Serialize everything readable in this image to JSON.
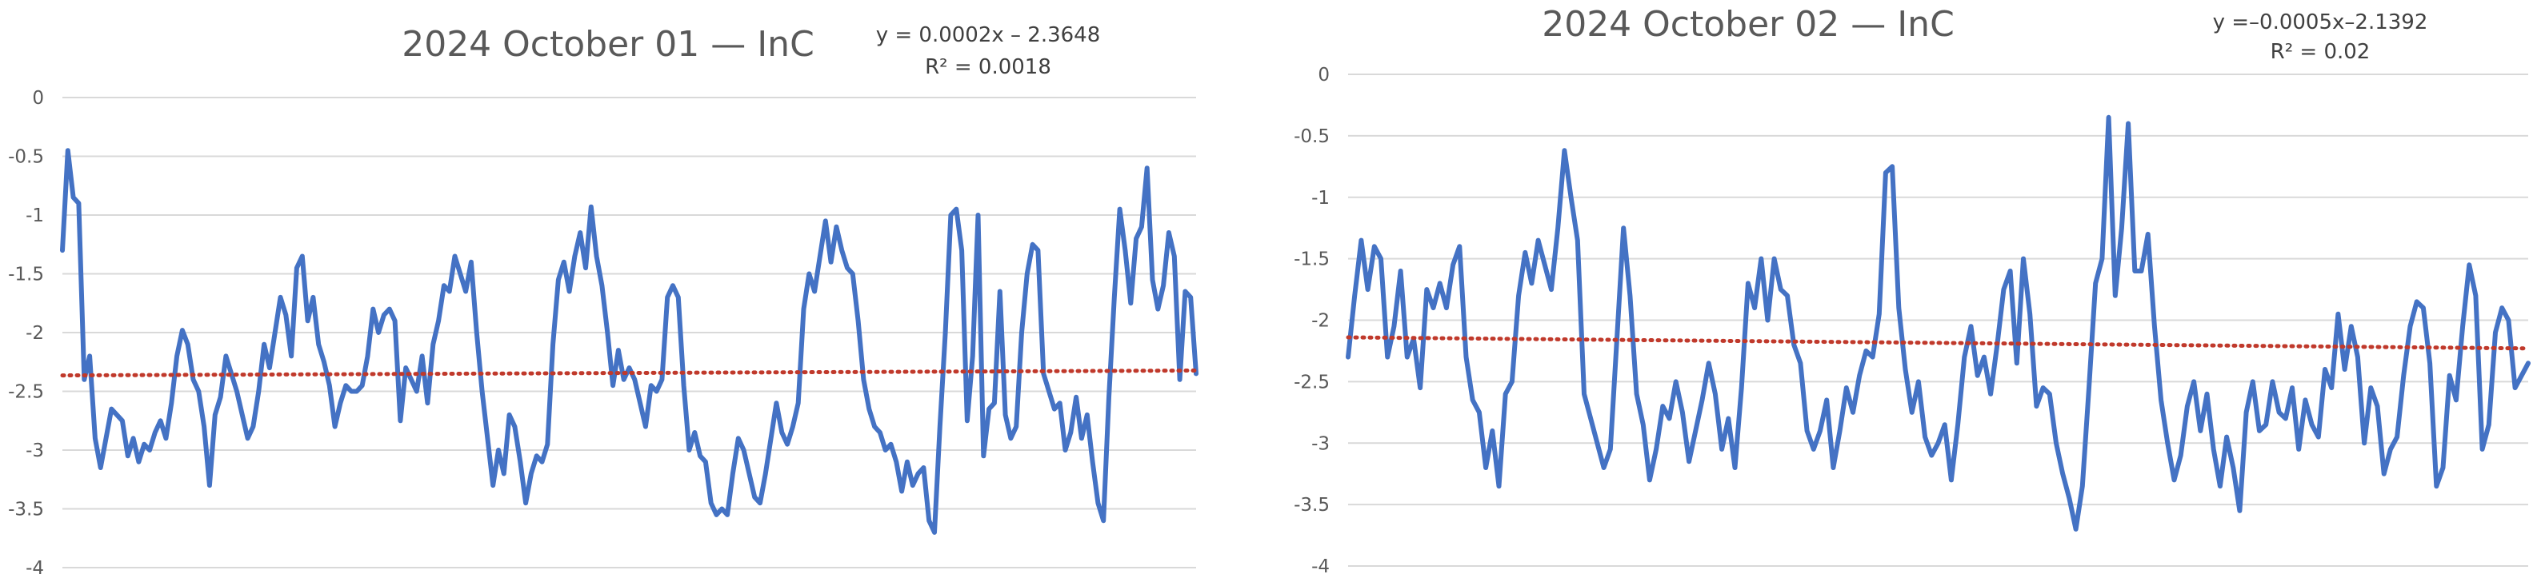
{
  "colors": {
    "series": "#4472C4",
    "trendline": "#C0392B"
  },
  "chart_data": [
    {
      "type": "line",
      "title": "2024 October 01 — InC",
      "xlabel": "",
      "ylabel": "",
      "ylim": [
        -4,
        0
      ],
      "y_ticks": [
        "0",
        "-0.5",
        "-1",
        "-1.5",
        "-2",
        "-2.5",
        "-3",
        "-3.5",
        "-4"
      ],
      "grid": true,
      "legend": "none",
      "trendline": {
        "equation": "y = 0.0002x – 2.3648",
        "r_squared": "R² = 0.0018",
        "slope": 0.0002,
        "intercept": -2.3648
      },
      "series": [
        {
          "values": [
            -1.3,
            -0.45,
            -0.85,
            -0.9,
            -2.4,
            -2.2,
            -2.9,
            -3.15,
            -2.9,
            -2.65,
            -2.7,
            -2.75,
            -3.05,
            -2.9,
            -3.1,
            -2.95,
            -3.0,
            -2.85,
            -2.75,
            -2.9,
            -2.6,
            -2.2,
            -1.98,
            -2.1,
            -2.4,
            -2.5,
            -2.8,
            -3.3,
            -2.7,
            -2.55,
            -2.2,
            -2.35,
            -2.5,
            -2.7,
            -2.9,
            -2.8,
            -2.5,
            -2.1,
            -2.3,
            -2.0,
            -1.7,
            -1.85,
            -2.2,
            -1.45,
            -1.35,
            -1.9,
            -1.7,
            -2.1,
            -2.25,
            -2.45,
            -2.8,
            -2.6,
            -2.45,
            -2.5,
            -2.5,
            -2.45,
            -2.2,
            -1.8,
            -2.0,
            -1.85,
            -1.8,
            -1.9,
            -2.75,
            -2.3,
            -2.4,
            -2.5,
            -2.2,
            -2.6,
            -2.1,
            -1.9,
            -1.6,
            -1.65,
            -1.35,
            -1.5,
            -1.65,
            -1.4,
            -2.0,
            -2.5,
            -2.9,
            -3.3,
            -3.0,
            -3.2,
            -2.7,
            -2.8,
            -3.1,
            -3.45,
            -3.2,
            -3.05,
            -3.1,
            -2.95,
            -2.1,
            -1.55,
            -1.4,
            -1.65,
            -1.35,
            -1.15,
            -1.45,
            -0.93,
            -1.35,
            -1.6,
            -2.0,
            -2.45,
            -2.15,
            -2.4,
            -2.3,
            -2.4,
            -2.6,
            -2.8,
            -2.45,
            -2.5,
            -2.4,
            -1.7,
            -1.6,
            -1.7,
            -2.45,
            -3.0,
            -2.85,
            -3.05,
            -3.1,
            -3.45,
            -3.55,
            -3.5,
            -3.55,
            -3.2,
            -2.9,
            -3.0,
            -3.2,
            -3.4,
            -3.45,
            -3.2,
            -2.9,
            -2.6,
            -2.85,
            -2.95,
            -2.8,
            -2.6,
            -1.8,
            -1.5,
            -1.65,
            -1.35,
            -1.05,
            -1.4,
            -1.1,
            -1.3,
            -1.45,
            -1.5,
            -1.9,
            -2.4,
            -2.65,
            -2.8,
            -2.85,
            -3.0,
            -2.95,
            -3.1,
            -3.35,
            -3.1,
            -3.3,
            -3.2,
            -3.15,
            -3.6,
            -3.7,
            -2.8,
            -2.0,
            -1.0,
            -0.95,
            -1.3,
            -2.75,
            -2.2,
            -1.0,
            -3.05,
            -2.65,
            -2.6,
            -1.65,
            -2.7,
            -2.9,
            -2.8,
            -2.0,
            -1.5,
            -1.25,
            -1.3,
            -2.35,
            -2.5,
            -2.65,
            -2.6,
            -3.0,
            -2.85,
            -2.55,
            -2.9,
            -2.7,
            -3.1,
            -3.45,
            -3.6,
            -2.55,
            -1.7,
            -0.95,
            -1.3,
            -1.75,
            -1.2,
            -1.1,
            -0.6,
            -1.55,
            -1.8,
            -1.6,
            -1.15,
            -1.35,
            -2.4,
            -1.65,
            -1.7,
            -2.35
          ]
        }
      ]
    },
    {
      "type": "line",
      "title": "2024 October 02 — InC",
      "xlabel": "",
      "ylabel": "",
      "ylim": [
        -4,
        0
      ],
      "y_ticks": [
        "0",
        "-0.5",
        "-1",
        "-1.5",
        "-2",
        "-2.5",
        "-3",
        "-3.5",
        "-4"
      ],
      "grid": true,
      "legend": "none",
      "trendline": {
        "equation": "y =–0.0005x–2.1392",
        "r_squared": "R² = 0.02",
        "slope": -0.0005,
        "intercept": -2.1392
      },
      "series": [
        {
          "values": [
            -2.3,
            -1.8,
            -1.35,
            -1.75,
            -1.4,
            -1.5,
            -2.3,
            -2.05,
            -1.6,
            -2.3,
            -2.15,
            -2.55,
            -1.75,
            -1.9,
            -1.7,
            -1.9,
            -1.55,
            -1.4,
            -2.3,
            -2.65,
            -2.75,
            -3.2,
            -2.9,
            -3.35,
            -2.6,
            -2.5,
            -1.8,
            -1.45,
            -1.7,
            -1.35,
            -1.55,
            -1.75,
            -1.25,
            -0.62,
            -1.0,
            -1.35,
            -2.6,
            -2.8,
            -3.0,
            -3.2,
            -3.05,
            -2.15,
            -1.25,
            -1.8,
            -2.6,
            -2.85,
            -3.3,
            -3.05,
            -2.7,
            -2.8,
            -2.5,
            -2.75,
            -3.15,
            -2.9,
            -2.65,
            -2.35,
            -2.6,
            -3.05,
            -2.8,
            -3.2,
            -2.55,
            -1.7,
            -1.9,
            -1.5,
            -2.0,
            -1.5,
            -1.75,
            -1.8,
            -2.2,
            -2.35,
            -2.9,
            -3.05,
            -2.9,
            -2.65,
            -3.2,
            -2.9,
            -2.55,
            -2.75,
            -2.45,
            -2.25,
            -2.3,
            -1.95,
            -0.8,
            -0.75,
            -1.9,
            -2.4,
            -2.75,
            -2.5,
            -2.95,
            -3.1,
            -3.0,
            -2.85,
            -3.3,
            -2.85,
            -2.3,
            -2.05,
            -2.45,
            -2.3,
            -2.6,
            -2.2,
            -1.75,
            -1.6,
            -2.35,
            -1.5,
            -1.95,
            -2.7,
            -2.55,
            -2.6,
            -3.0,
            -3.25,
            -3.45,
            -3.7,
            -3.35,
            -2.55,
            -1.7,
            -1.5,
            -0.35,
            -1.8,
            -1.25,
            -0.4,
            -1.6,
            -1.6,
            -1.3,
            -2.05,
            -2.65,
            -3.0,
            -3.3,
            -3.1,
            -2.7,
            -2.5,
            -2.9,
            -2.6,
            -3.05,
            -3.35,
            -2.95,
            -3.2,
            -3.55,
            -2.75,
            -2.5,
            -2.9,
            -2.85,
            -2.5,
            -2.75,
            -2.8,
            -2.55,
            -3.05,
            -2.65,
            -2.85,
            -2.95,
            -2.4,
            -2.55,
            -1.95,
            -2.4,
            -2.05,
            -2.3,
            -3.0,
            -2.55,
            -2.7,
            -3.25,
            -3.05,
            -2.95,
            -2.45,
            -2.05,
            -1.85,
            -1.9,
            -2.35,
            -3.35,
            -3.2,
            -2.45,
            -2.65,
            -2.05,
            -1.55,
            -1.8,
            -3.05,
            -2.85,
            -2.1,
            -1.9,
            -2.0,
            -2.55,
            -2.45,
            -2.35
          ]
        }
      ]
    }
  ]
}
